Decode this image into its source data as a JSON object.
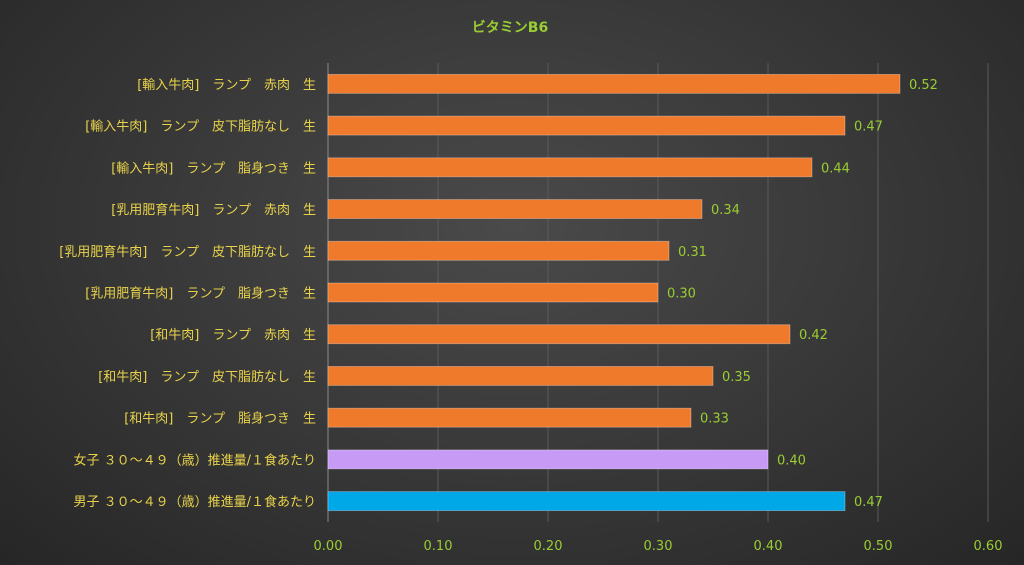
{
  "chart_data": {
    "type": "bar",
    "orientation": "horizontal",
    "title": "ビタミンB6",
    "xlabel": "",
    "ylabel": "",
    "xlim": [
      0,
      0.6
    ],
    "xticks": [
      "0.00",
      "0.10",
      "0.20",
      "0.30",
      "0.40",
      "0.50",
      "0.60"
    ],
    "grid": true,
    "legend": "none",
    "categories": [
      "[輸入牛肉]　ランプ　赤肉　生",
      "[輸入牛肉]　ランプ　皮下脂肪なし　生",
      "[輸入牛肉]　ランプ　脂身つき　生",
      "[乳用肥育牛肉]　ランプ　赤肉　生",
      "[乳用肥育牛肉]　ランプ　皮下脂肪なし　生",
      "[乳用肥育牛肉]　ランプ　脂身つき　生",
      "[和牛肉]　ランプ　赤肉　生",
      "[和牛肉]　ランプ　皮下脂肪なし　生",
      "[和牛肉]　ランプ　脂身つき　生",
      "女子 ３０～４９（歳）推進量/１食あたり",
      "男子 ３０～４９（歳）推進量/１食あたり"
    ],
    "values": [
      0.52,
      0.47,
      0.44,
      0.34,
      0.31,
      0.3,
      0.42,
      0.35,
      0.33,
      0.4,
      0.47
    ],
    "value_labels": [
      "0.52",
      "0.47",
      "0.44",
      "0.34",
      "0.31",
      "0.30",
      "0.42",
      "0.35",
      "0.33",
      "0.40",
      "0.47"
    ],
    "bar_colors": [
      "#f07a2c",
      "#f07a2c",
      "#f07a2c",
      "#f07a2c",
      "#f07a2c",
      "#f07a2c",
      "#f07a2c",
      "#f07a2c",
      "#f07a2c",
      "#c79bf5",
      "#00a8e8"
    ]
  }
}
